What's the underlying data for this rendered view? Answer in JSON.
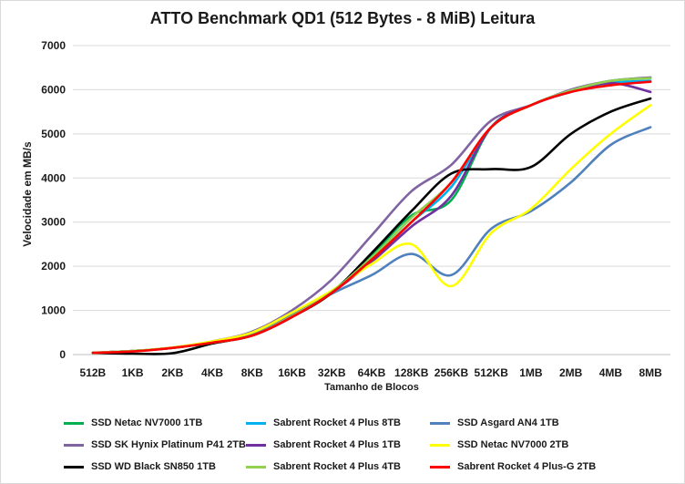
{
  "chart_data": {
    "type": "line",
    "title": "ATTO Benchmark QD1 (512 Bytes - 8 MiB) Leitura",
    "xlabel": "Tamanho  de Blocos",
    "ylabel": "Velocidade em MB/s",
    "ylim": [
      0,
      7000
    ],
    "yticks": [
      0,
      1000,
      2000,
      3000,
      4000,
      5000,
      6000,
      7000
    ],
    "ytick_labels": [
      "0",
      "1000",
      "2000",
      "3000",
      "4000",
      "5000",
      "6000",
      "7000"
    ],
    "grid": true,
    "legend_position": "bottom",
    "categories": [
      "512B",
      "1KB",
      "2KB",
      "4KB",
      "8KB",
      "16KB",
      "32KB",
      "64KB",
      "128KB",
      "256KB",
      "512KB",
      "1MB",
      "2MB",
      "4MB",
      "8MB"
    ],
    "series": [
      {
        "name": "SSD Netac NV7000 1TB",
        "color": "#00b050",
        "values": [
          40,
          80,
          150,
          270,
          430,
          870,
          1420,
          2250,
          3150,
          3500,
          5150,
          5650,
          5980,
          6200,
          6270
        ]
      },
      {
        "name": "Sabrent Rocket 4 Plus 8TB",
        "color": "#00b0f0",
        "values": [
          40,
          80,
          150,
          270,
          430,
          860,
          1400,
          2150,
          3000,
          3800,
          5150,
          5650,
          5950,
          6150,
          6200
        ]
      },
      {
        "name": "SSD Asgard AN4 1TB",
        "color": "#4f81bd",
        "values": [
          40,
          80,
          150,
          280,
          450,
          900,
          1380,
          1800,
          2280,
          1800,
          2850,
          3250,
          3900,
          4750,
          5150
        ]
      },
      {
        "name": "SSD SK Hynix Platinum P41 2TB",
        "color": "#8064a2",
        "values": [
          40,
          80,
          160,
          300,
          520,
          1000,
          1700,
          2700,
          3700,
          4300,
          5300,
          5650,
          6000,
          6200,
          6280
        ]
      },
      {
        "name": "Sabrent Rocket 4 Plus 1TB",
        "color": "#7030a0",
        "values": [
          40,
          80,
          150,
          270,
          430,
          850,
          1400,
          2100,
          2900,
          3600,
          5150,
          5650,
          5950,
          6150,
          5950
        ]
      },
      {
        "name": "SSD Netac NV7000 2TB",
        "color": "#ffff00",
        "values": [
          40,
          80,
          160,
          300,
          500,
          950,
          1450,
          2050,
          2500,
          1550,
          2750,
          3300,
          4200,
          5000,
          5650
        ]
      },
      {
        "name": "SSD WD Black SN850 1TB",
        "color": "#000000",
        "values": [
          40,
          20,
          30,
          250,
          430,
          850,
          1400,
          2300,
          3250,
          4100,
          4200,
          4250,
          5000,
          5500,
          5800
        ]
      },
      {
        "name": "Sabrent Rocket 4 Plus 4TB",
        "color": "#92d050",
        "values": [
          40,
          80,
          150,
          270,
          430,
          870,
          1420,
          2200,
          3100,
          3900,
          5150,
          5650,
          5980,
          6200,
          6260
        ]
      },
      {
        "name": "Sabrent Rocket 4 Plus-G 2TB",
        "color": "#ff0000",
        "values": [
          40,
          70,
          150,
          270,
          430,
          850,
          1400,
          2150,
          3000,
          3900,
          5150,
          5650,
          5950,
          6100,
          6180
        ]
      }
    ]
  }
}
